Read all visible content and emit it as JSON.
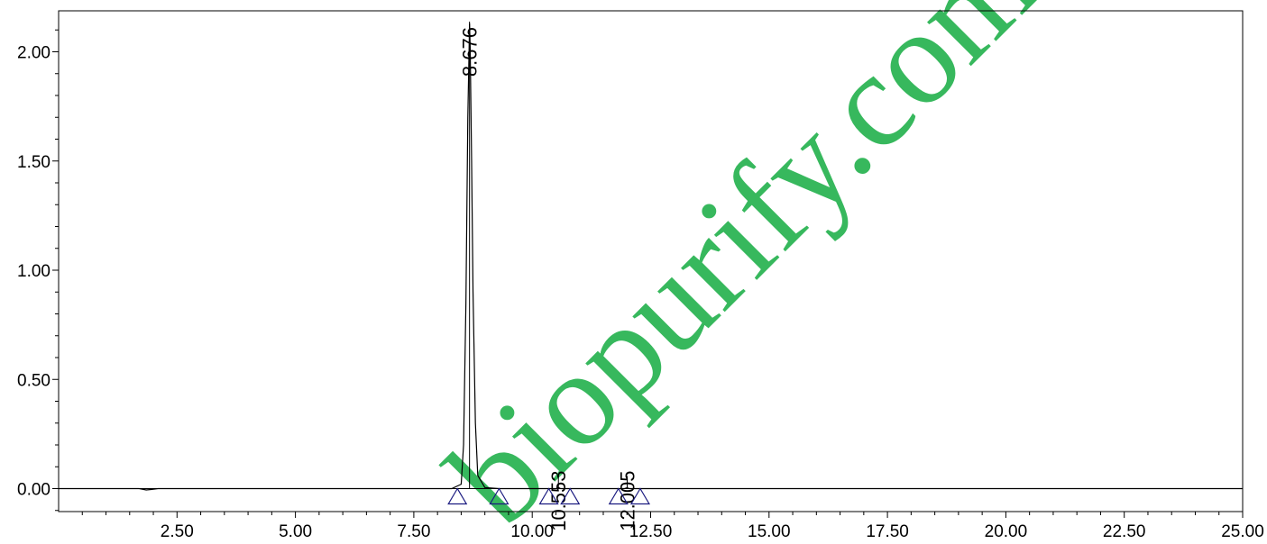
{
  "watermark": "biopurify.com",
  "colors": {
    "trace": "#000000",
    "axis": "#000000",
    "marker": "#1a1a80",
    "watermark": "#22b14c"
  },
  "chart_data": {
    "type": "line",
    "title": "",
    "xlabel": "",
    "ylabel": "",
    "xlim": [
      0,
      25
    ],
    "ylim": [
      -0.1,
      2.2
    ],
    "grid": false,
    "baseline": 0.0,
    "x_ticks": [
      2.5,
      5.0,
      7.5,
      10.0,
      12.5,
      15.0,
      17.5,
      20.0,
      22.5,
      25.0
    ],
    "x_tick_labels": [
      "2.50",
      "5.00",
      "7.50",
      "10.00",
      "12.50",
      "15.00",
      "17.50",
      "20.00",
      "22.50",
      "25.00"
    ],
    "y_ticks": [
      0.0,
      0.5,
      1.0,
      1.5,
      2.0
    ],
    "y_tick_labels": [
      "0.00",
      "0.50",
      "1.00",
      "1.50",
      "2.00"
    ],
    "series": [
      {
        "x": [
          0.0,
          1.7,
          1.85,
          1.95,
          2.1,
          8.3,
          8.5,
          8.55,
          8.6,
          8.64,
          8.67,
          8.676,
          8.69,
          8.72,
          8.75,
          8.8,
          8.85,
          9.0,
          9.3,
          10.5,
          10.553,
          10.6,
          11.95,
          12.005,
          12.05,
          25.0
        ],
        "y": [
          0.0,
          0.0,
          -0.006,
          -0.004,
          0.0,
          0.0,
          0.02,
          0.2,
          0.85,
          1.7,
          2.05,
          2.13,
          2.02,
          1.5,
          0.9,
          0.3,
          0.06,
          0.005,
          0.0,
          0.0,
          0.005,
          0.0,
          0.0,
          0.004,
          0.0,
          0.0
        ]
      }
    ],
    "peaks": [
      {
        "rt": 8.676,
        "label": "8.676",
        "height": 2.12
      },
      {
        "rt": 10.553,
        "label": "10.553",
        "height": 0.06
      },
      {
        "rt": 12.005,
        "label": "12.005",
        "height": 0.06
      }
    ],
    "integration_markers": [
      8.42,
      9.3,
      10.35,
      10.8,
      11.82,
      12.28
    ]
  }
}
